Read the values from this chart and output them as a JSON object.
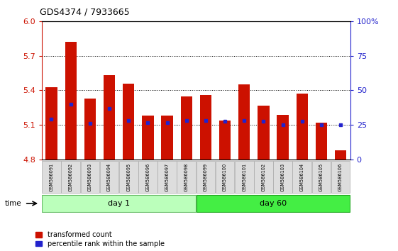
{
  "title": "GDS4374 / 7933665",
  "samples": [
    "GSM586091",
    "GSM586092",
    "GSM586093",
    "GSM586094",
    "GSM586095",
    "GSM586096",
    "GSM586097",
    "GSM586098",
    "GSM586099",
    "GSM586100",
    "GSM586101",
    "GSM586102",
    "GSM586103",
    "GSM586104",
    "GSM586105",
    "GSM586106"
  ],
  "bar_values": [
    5.43,
    5.82,
    5.33,
    5.53,
    5.46,
    5.18,
    5.18,
    5.35,
    5.36,
    5.14,
    5.45,
    5.27,
    5.19,
    5.37,
    5.12,
    4.88
  ],
  "percentile_values": [
    5.15,
    5.28,
    5.11,
    5.24,
    5.14,
    5.12,
    5.12,
    5.14,
    5.14,
    5.13,
    5.14,
    5.13,
    5.1,
    5.13,
    5.1,
    5.1
  ],
  "y_min": 4.8,
  "y_max": 6.0,
  "y_ticks": [
    4.8,
    5.1,
    5.4,
    5.7,
    6.0
  ],
  "y_right_ticks": [
    0,
    25,
    50,
    75,
    100
  ],
  "y_right_labels": [
    "0",
    "25",
    "50",
    "75",
    "100%"
  ],
  "bar_color": "#cc1100",
  "blue_color": "#2222cc",
  "day1_color": "#bbffbb",
  "day60_color": "#44ee44",
  "day1_samples": 8,
  "day60_samples": 8,
  "bg_xlabel": "#dddddd",
  "bar_bottom": 4.8,
  "grid_yticks": [
    5.1,
    5.4,
    5.7
  ]
}
